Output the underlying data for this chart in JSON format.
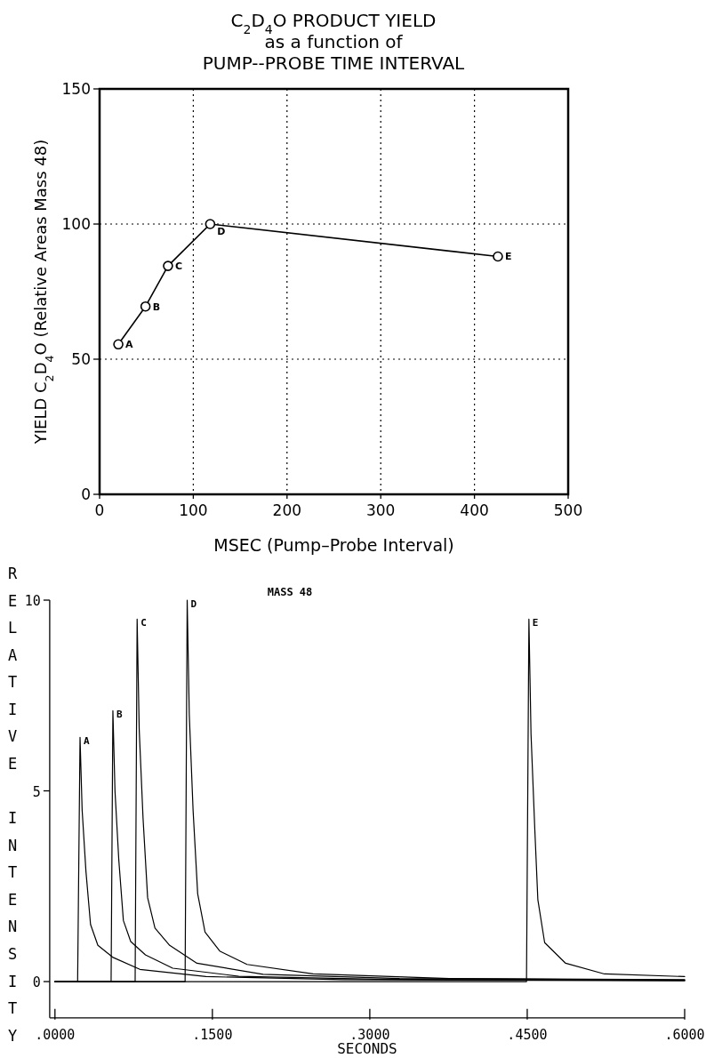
{
  "chart_data": [
    {
      "type": "line",
      "title": "C$_{2}$D$_{4}$O PRODUCT YIELD\nas a function of\nPUMP--PROBE TIME INTERVAL",
      "xlabel": "MSEC (Pump–Probe Interval)",
      "ylabel": "YIELD C$_{2}$D$_{4}$O (Relative Areas Mass 48)",
      "x": [
        20,
        49,
        73,
        118,
        425
      ],
      "values": [
        55.5,
        69.5,
        84.5,
        100,
        88
      ],
      "color": "#000000",
      "marker": "circle",
      "xlim": [
        0,
        500
      ],
      "ylim": [
        0,
        150
      ],
      "xticks": [
        0,
        100,
        200,
        300,
        400,
        500
      ],
      "yticks": [
        0,
        50,
        100,
        150
      ],
      "grid": true,
      "annotations": [
        {
          "text": "A",
          "x": 20,
          "y": 55.5
        },
        {
          "text": "B",
          "x": 49,
          "y": 69.5
        },
        {
          "text": "C",
          "x": 73,
          "y": 84.5
        },
        {
          "text": "D",
          "x": 118,
          "y": 100
        },
        {
          "text": "E",
          "x": 425,
          "y": 88
        }
      ]
    },
    {
      "type": "line",
      "title": "MASS 48",
      "xlabel": "SECONDS",
      "ylabel": "RELATIVE INTENSITY",
      "series": [
        {
          "color": "#000000",
          "x": [
            0,
            0.0216,
            0.0239,
            0.0259,
            0.0295,
            0.0339,
            0.0409,
            0.0549,
            0.0809,
            0.1439,
            0.2739,
            0.6
          ],
          "values": [
            0,
            0,
            6.4,
            4.5,
            2.9,
            1.5,
            0.95,
            0.64,
            0.32,
            0.13,
            0.05,
            0.02
          ]
        },
        {
          "color": "#000000",
          "x": [
            0,
            0.0535,
            0.0552,
            0.0572,
            0.0608,
            0.0652,
            0.0722,
            0.0862,
            0.1122,
            0.1752,
            0.3052,
            0.6
          ],
          "values": [
            0,
            0,
            7.1,
            5.0,
            3.2,
            1.6,
            1.05,
            0.7,
            0.35,
            0.14,
            0.06,
            0.03
          ]
        },
        {
          "color": "#000000",
          "x": [
            0,
            0.0764,
            0.0783,
            0.0803,
            0.0839,
            0.0883,
            0.0953,
            0.1093,
            0.1353,
            0.1983,
            0.3283,
            0.6
          ],
          "values": [
            0,
            0,
            9.5,
            6.6,
            4.3,
            2.2,
            1.4,
            0.95,
            0.48,
            0.19,
            0.08,
            0.04
          ]
        },
        {
          "color": "#000000",
          "x": [
            0,
            0.124,
            0.126,
            0.128,
            0.1316,
            0.136,
            0.143,
            0.157,
            0.183,
            0.246,
            0.376,
            0.6
          ],
          "values": [
            0,
            0,
            10,
            7,
            4.5,
            2.3,
            1.3,
            0.8,
            0.45,
            0.2,
            0.08,
            0.05
          ]
        },
        {
          "color": "#000000",
          "x": [
            0,
            0.4493,
            0.4516,
            0.4536,
            0.4572,
            0.4601,
            0.4666,
            0.4866,
            0.5236,
            0.6
          ],
          "values": [
            0,
            0,
            9.5,
            6.5,
            4.0,
            2.15,
            1.02,
            0.48,
            0.2,
            0.13
          ]
        }
      ],
      "xlim": [
        -0.005,
        0.6
      ],
      "ylim": [
        -0.95,
        10
      ],
      "xticks": [
        {
          "value": 0,
          "label": ".0000"
        },
        {
          "value": 0.15,
          "label": ".1500"
        },
        {
          "value": 0.3,
          "label": ".3000"
        },
        {
          "value": 0.45,
          "label": ".4500"
        },
        {
          "value": 0.6,
          "label": ".6000"
        }
      ],
      "yticks": [
        0,
        5,
        10
      ],
      "annotations": [
        {
          "text": "A",
          "x": 0.0239,
          "y": 6.4
        },
        {
          "text": "B",
          "x": 0.0552,
          "y": 7.1
        },
        {
          "text": "C",
          "x": 0.0783,
          "y": 9.5
        },
        {
          "text": "D",
          "x": 0.126,
          "y": 10
        },
        {
          "text": "E",
          "x": 0.4516,
          "y": 9.5
        }
      ]
    }
  ]
}
